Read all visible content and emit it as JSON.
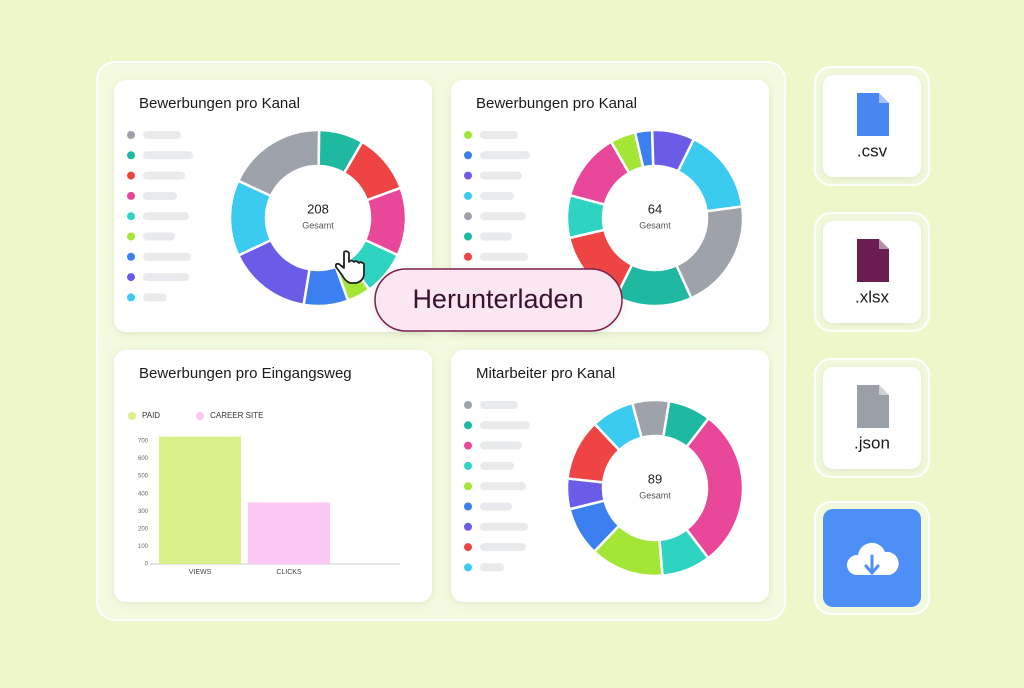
{
  "chart_data": [
    {
      "type": "donut",
      "title": "Bewerbungen pro Kanal",
      "center_value": 208,
      "center_label": "Gesamt",
      "values": [
        38,
        17,
        23,
        26,
        17,
        9,
        17,
        32,
        29
      ],
      "colors": [
        "#9ea3ab",
        "#1fb8a0",
        "#ef4444",
        "#e8479a",
        "#2fd3c2",
        "#a3e635",
        "#3b7ff0",
        "#6b5ce7",
        "#3ccbf0"
      ]
    },
    {
      "type": "donut",
      "title": "Bewerbungen pro Kanal",
      "center_value": 64,
      "center_label": "Gesamt",
      "values": [
        3,
        2,
        5,
        10,
        13,
        9,
        9,
        5,
        8
      ],
      "colors": [
        "#a3e635",
        "#3b7ff0",
        "#6b5ce7",
        "#3ccbf0",
        "#9ea3ab",
        "#1fb8a0",
        "#ef4444",
        "#2fd3c2",
        "#e8479a"
      ]
    },
    {
      "type": "bar",
      "title": "Bewerbungen pro Eingangsweg",
      "categories": [
        "VIEWS",
        "CLICKS"
      ],
      "series": [
        {
          "name": "PAID",
          "color": "#d9f08a",
          "values": [
            725,
            null
          ]
        },
        {
          "name": "CAREER SITE",
          "color": "#fbc8f3",
          "values": [
            null,
            350
          ]
        }
      ],
      "ylim": [
        0,
        750
      ],
      "yticks": [
        0,
        100,
        200,
        300,
        400,
        500,
        600,
        700
      ]
    },
    {
      "type": "donut",
      "title": "Mitarbeiter pro Kanal",
      "center_value": 89,
      "center_label": "Gesamt",
      "values": [
        6,
        7,
        26,
        8,
        12,
        8,
        5,
        10,
        7
      ],
      "colors": [
        "#9ea3ab",
        "#1fb8a0",
        "#e8479a",
        "#2fd3c2",
        "#a3e635",
        "#3b7ff0",
        "#6b5ce7",
        "#ef4444",
        "#3ccbf0"
      ]
    }
  ],
  "export": {
    "formats": [
      ".csv",
      ".xlsx",
      ".json"
    ],
    "button": "Herunterladen"
  }
}
